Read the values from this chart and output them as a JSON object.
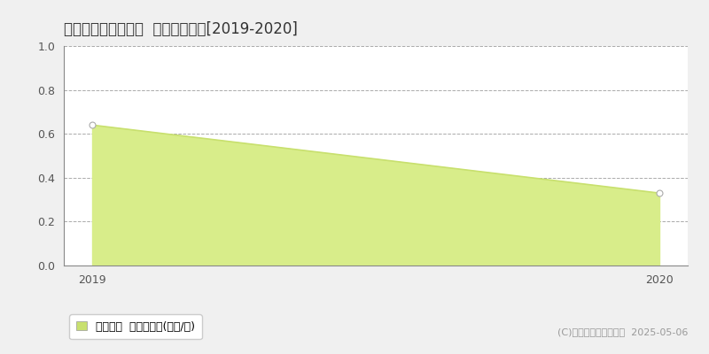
{
  "title": "阿波市阿波町東長峰  土地価格推移[2019-2020]",
  "years": [
    2019,
    2020
  ],
  "values": [
    0.64,
    0.33
  ],
  "ylim": [
    0,
    1
  ],
  "yticks": [
    0,
    0.2,
    0.4,
    0.6,
    0.8,
    1.0
  ],
  "line_color": "#c8e06e",
  "fill_color": "#d8ed8a",
  "fill_alpha": 1.0,
  "marker_color": "#ffffff",
  "marker_edge_color": "#aaaaaa",
  "bg_color": "#f0f0f0",
  "plot_bg_color": "#ffffff",
  "grid_color": "#aaaaaa",
  "legend_label": "土地価格  平均坪単価(万円/坪)",
  "copyright_text": "(C)土地価格ドットコム  2025-05-06",
  "title_fontsize": 12,
  "tick_fontsize": 9,
  "legend_fontsize": 9,
  "copyright_fontsize": 8
}
